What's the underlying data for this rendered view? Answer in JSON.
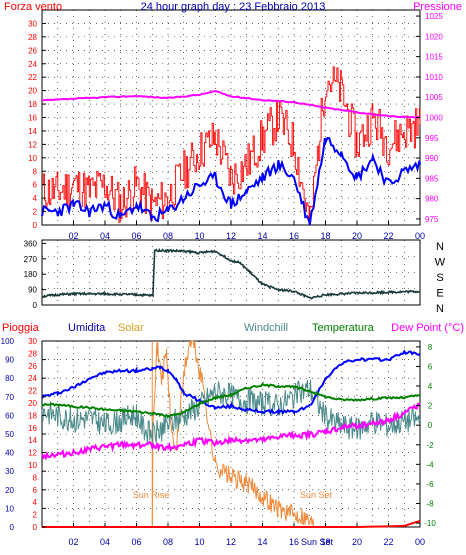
{
  "title": "24 hour graph day : 23 Febbraio 2013",
  "colors": {
    "wind": "#ff0000",
    "gust_line": "#0000ff",
    "pressure": "#ff00ff",
    "direction": "#1b3a3a",
    "rain": "#ff0000",
    "humidity": "#0000ff",
    "solar": "#f08a3a",
    "windchill": "#4a8a8a",
    "temperature": "#008000",
    "dewpoint": "#ff00ff",
    "text_blue": "#0000aa",
    "grid": "#000000"
  },
  "time_ticks": [
    "02",
    "04",
    "06",
    "08",
    "10",
    "12",
    "14",
    "16",
    "18",
    "20",
    "22",
    "00"
  ],
  "chart_data": [
    {
      "type": "line",
      "id": "wind_pressure",
      "left_label": "Forza vento",
      "right_label": "Pressione",
      "left_ticks": [
        "0",
        "2",
        "4",
        "6",
        "8",
        "10",
        "12",
        "14",
        "16",
        "18",
        "20",
        "22",
        "24",
        "26",
        "28",
        "30"
      ],
      "ylim_left": [
        0,
        32
      ],
      "right_ticks": [
        "975",
        "980",
        "985",
        "990",
        "995",
        "1000",
        "1005",
        "1010",
        "1015",
        "1020",
        "1025"
      ],
      "ylim_right": [
        973.5,
        1026.5
      ],
      "xlim": [
        0,
        24
      ],
      "series": [
        {
          "key": "gust",
          "x": [
            0,
            1,
            2,
            3,
            4,
            5,
            6,
            7,
            8,
            9,
            10,
            11,
            12,
            13,
            14,
            15,
            16,
            17,
            18,
            19,
            20,
            21,
            22,
            23,
            24
          ],
          "values": [
            5,
            5,
            6,
            5,
            6,
            3,
            6,
            3,
            4,
            8,
            11,
            13,
            7,
            9,
            13,
            16,
            12,
            0,
            22,
            20,
            12,
            16,
            12,
            14,
            15
          ]
        },
        {
          "key": "avg",
          "x": [
            0,
            1,
            2,
            3,
            4,
            5,
            6,
            7,
            8,
            9,
            10,
            11,
            12,
            13,
            14,
            15,
            16,
            17,
            18,
            19,
            20,
            21,
            22,
            23,
            24
          ],
          "values": [
            2,
            2,
            3,
            2,
            3,
            1,
            3,
            1,
            2,
            4,
            6,
            7,
            3,
            5,
            7,
            9,
            7,
            0,
            13,
            11,
            7,
            10,
            6,
            8,
            9
          ]
        },
        {
          "key": "pressure",
          "x": [
            0,
            2,
            4,
            6,
            8,
            10,
            11,
            12,
            13,
            14,
            16,
            18,
            20,
            22,
            24
          ],
          "values": [
            1004.2,
            1004.6,
            1005.0,
            1005.3,
            1004.8,
            1005.6,
            1006.5,
            1005.2,
            1004.8,
            1004.3,
            1003.8,
            1002.4,
            1001.3,
            1000.3,
            1000.0
          ]
        }
      ]
    },
    {
      "type": "line",
      "id": "wind_direction",
      "left_ticks": [
        "0",
        "90",
        "180",
        "270",
        "360"
      ],
      "ylim": [
        0,
        380
      ],
      "right_ticks": [
        "N",
        "W",
        "S",
        "E",
        "N"
      ],
      "xlim": [
        0,
        24
      ],
      "series": [
        {
          "key": "direction",
          "x": [
            0,
            1,
            2,
            4,
            6,
            7.05,
            7.15,
            9,
            10,
            11,
            12,
            12.5,
            13,
            14,
            15,
            16,
            17,
            18,
            20,
            22,
            24
          ],
          "values": [
            50,
            60,
            65,
            65,
            60,
            55,
            320,
            315,
            305,
            315,
            260,
            250,
            210,
            120,
            90,
            80,
            40,
            60,
            70,
            75,
            80
          ]
        }
      ]
    },
    {
      "type": "line",
      "id": "weather",
      "labels": [
        "Pioggia",
        "Umidita",
        "Solar",
        "Windchill",
        "Temperatura",
        "Dew Point (°C)"
      ],
      "left_ticks": [
        "0",
        "10",
        "20",
        "30",
        "40",
        "50",
        "60",
        "70",
        "80",
        "90",
        "100"
      ],
      "ylim_left": [
        0,
        100
      ],
      "solar_ticks": [
        "0",
        "2",
        "4",
        "6",
        "8",
        "10",
        "12",
        "14",
        "16",
        "18",
        "20",
        "22",
        "24",
        "26",
        "28",
        "30"
      ],
      "ylim_solar": [
        0,
        30
      ],
      "right_ticks": [
        "8",
        "6",
        "4",
        "2",
        "0",
        "-2",
        "-4",
        "-6",
        "-8",
        "-10"
      ],
      "ylim_right": [
        -10.4,
        8.6
      ],
      "xlim": [
        0,
        24
      ],
      "annotations": [
        "Sun Rise",
        "Sun Set",
        "Sun Set"
      ],
      "series": [
        {
          "key": "humidity",
          "x": [
            0,
            1,
            2,
            3,
            4,
            5,
            6,
            7,
            7.5,
            8,
            8.5,
            9,
            10,
            11,
            12,
            13,
            14,
            15,
            16,
            17,
            17.5,
            18,
            19,
            20,
            21,
            22,
            23,
            24
          ],
          "values": [
            70,
            72,
            75,
            80,
            83,
            84,
            84,
            85,
            86,
            84,
            80,
            72,
            68,
            64,
            65,
            63,
            62,
            62,
            62,
            65,
            72,
            80,
            88,
            90,
            90,
            90,
            94,
            93
          ]
        },
        {
          "key": "temperature",
          "x": [
            0,
            1,
            2,
            3,
            4,
            5,
            6,
            7,
            7.5,
            8,
            9,
            10,
            11,
            12,
            13,
            14,
            15,
            16,
            17,
            18,
            19,
            20,
            21,
            22,
            23,
            24
          ],
          "values": [
            2.1,
            2.1,
            1.9,
            1.8,
            1.6,
            1.5,
            1.4,
            1.2,
            1.1,
            0.9,
            1.3,
            2.2,
            2.8,
            3.1,
            3.8,
            4.1,
            4.0,
            3.9,
            3.5,
            2.9,
            2.6,
            2.6,
            2.7,
            2.8,
            2.8,
            3.1
          ]
        },
        {
          "key": "windchill",
          "x": [
            0,
            1,
            2,
            3,
            4,
            5,
            6,
            6.5,
            7,
            7.5,
            8,
            9,
            10,
            11,
            12,
            13,
            14,
            15,
            16,
            17,
            18,
            19,
            20,
            21,
            22,
            23,
            24
          ],
          "values": [
            1.5,
            1.0,
            0.5,
            0.8,
            0.0,
            0.5,
            1.2,
            -0.5,
            -1.0,
            -0.5,
            0.0,
            1.0,
            2.0,
            3.5,
            3.0,
            2.5,
            2.2,
            2.0,
            3.0,
            3.8,
            0.8,
            0.0,
            -0.5,
            0.5,
            0.0,
            0.5,
            0.6
          ]
        },
        {
          "key": "dewpoint",
          "x": [
            0,
            1,
            2,
            3,
            4,
            5,
            6,
            7,
            8,
            9,
            10,
            11,
            12,
            13,
            14,
            15,
            16,
            17,
            18,
            19,
            20,
            21,
            22,
            23,
            24
          ],
          "values": [
            -3.1,
            -3.0,
            -2.8,
            -2.5,
            -2.2,
            -2.0,
            -2.0,
            -2.0,
            -2.3,
            -2.0,
            -1.6,
            -1.8,
            -1.6,
            -1.5,
            -1.6,
            -1.2,
            -1.0,
            -1.0,
            -0.7,
            -0.3,
            0.0,
            0.2,
            0.5,
            1.2,
            2.2
          ]
        },
        {
          "key": "solar",
          "x": [
            7,
            7.05,
            7.3,
            7.6,
            7.9,
            8.2,
            8.5,
            8.8,
            9.1,
            9.4,
            9.7,
            10,
            10.3,
            10.6,
            11,
            11.5,
            12,
            13,
            14,
            15,
            16,
            16.5,
            17,
            17.4
          ],
          "values": [
            0,
            18,
            29,
            24,
            28,
            16,
            12,
            20,
            26,
            30,
            29,
            25,
            22,
            16,
            10,
            9,
            8,
            7,
            5,
            3,
            2,
            2,
            1,
            0
          ]
        },
        {
          "key": "rain",
          "x": [
            0,
            20,
            21,
            22,
            23,
            23.5,
            24
          ],
          "values": [
            0,
            0,
            0.2,
            0.3,
            0.6,
            2.0,
            3.2
          ]
        }
      ]
    }
  ]
}
